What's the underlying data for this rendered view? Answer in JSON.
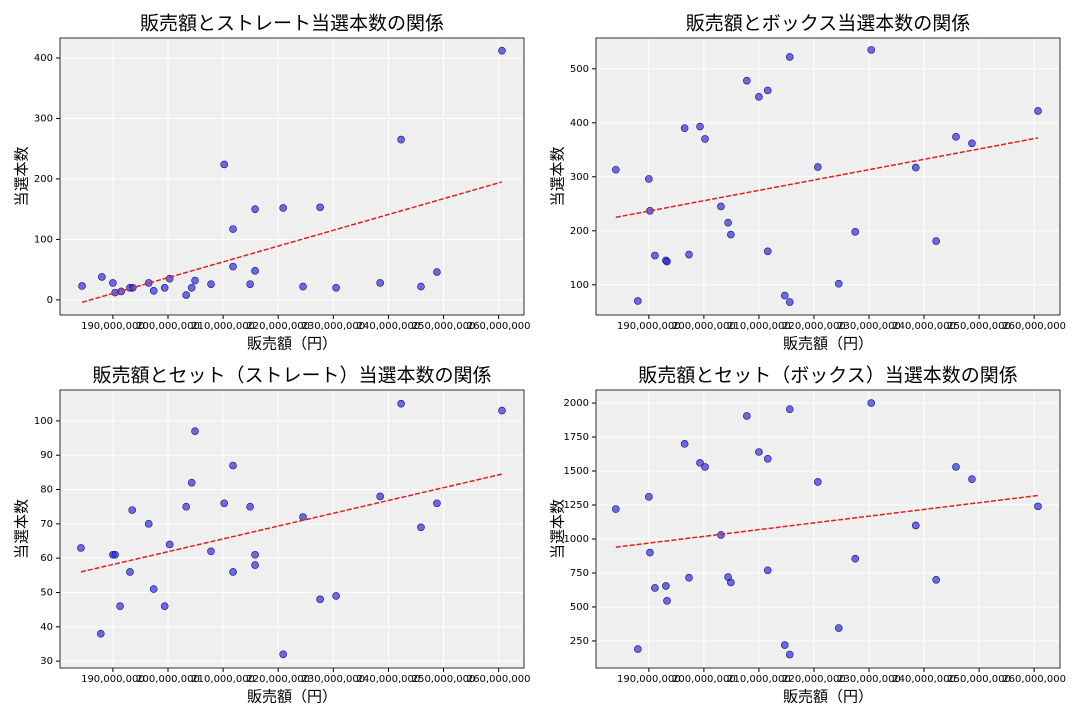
{
  "chart_data": [
    {
      "type": "scatter",
      "title": "販売額とストレート当選本数の関係",
      "xlabel": "販売額（円）",
      "ylabel": "当選本数",
      "grid": true,
      "xlim": [
        180400000,
        264600000
      ],
      "ylim": [
        -25,
        433
      ],
      "xticks": [
        {
          "value": 190000000,
          "label": "190,000,000"
        },
        {
          "value": 200000000,
          "label": "200,000,000"
        },
        {
          "value": 210000000,
          "label": "210,000,000"
        },
        {
          "value": 220000000,
          "label": "220,000,000"
        },
        {
          "value": 230000000,
          "label": "230,000,000"
        },
        {
          "value": 240000000,
          "label": "240,000,000"
        },
        {
          "value": 250000000,
          "label": "250,000,000"
        },
        {
          "value": 260000000,
          "label": "260,000,000"
        }
      ],
      "yticks": [
        0,
        100,
        200,
        300,
        400
      ],
      "series": [
        {
          "color": "#2020e0",
          "x": [
            184400000,
            188000000,
            190000000,
            190400000,
            191500000,
            193100000,
            193600000,
            196500000,
            197400000,
            199400000,
            200300000,
            203300000,
            204300000,
            204900000,
            207800000,
            210200000,
            211800000,
            211800000,
            214900000,
            215800000,
            215800000,
            220900000,
            224500000,
            227600000,
            230500000,
            238500000,
            242300000,
            245900000,
            248800000,
            260600000
          ],
          "values": [
            23,
            38,
            28,
            12,
            14,
            20,
            20,
            28,
            15,
            20,
            35,
            8,
            20,
            32,
            26,
            224,
            117,
            55,
            26,
            150,
            48,
            152,
            22,
            153,
            20,
            28,
            265,
            22,
            46,
            412
          ]
        }
      ],
      "trend": {
        "color": "#e02020",
        "x": [
          184400000,
          260600000
        ],
        "values": [
          -4,
          195
        ]
      }
    },
    {
      "type": "scatter",
      "title": "販売額とボックス当選本数の関係",
      "xlabel": "販売額（円）",
      "ylabel": "当選本数",
      "grid": true,
      "xlim": [
        180400000,
        264700000
      ],
      "ylim": [
        44,
        557
      ],
      "xticks": [
        {
          "value": 190000000,
          "label": "190,000,000"
        },
        {
          "value": 200000000,
          "label": "200,000,000"
        },
        {
          "value": 210000000,
          "label": "210,000,000"
        },
        {
          "value": 220000000,
          "label": "220,000,000"
        },
        {
          "value": 230000000,
          "label": "230,000,000"
        },
        {
          "value": 240000000,
          "label": "240,000,000"
        },
        {
          "value": 250000000,
          "label": "250,000,000"
        },
        {
          "value": 260000000,
          "label": "260,000,000"
        }
      ],
      "yticks": [
        100,
        200,
        300,
        400,
        500
      ],
      "series": [
        {
          "color": "#2020e0",
          "x": [
            184000000,
            188000000,
            190000000,
            190200000,
            191100000,
            193100000,
            193300000,
            196500000,
            197300000,
            199300000,
            200200000,
            203100000,
            204400000,
            204900000,
            207800000,
            210000000,
            211600000,
            211600000,
            214700000,
            215600000,
            215600000,
            220700000,
            224500000,
            227500000,
            230400000,
            238500000,
            242200000,
            245800000,
            248700000,
            260700000
          ],
          "values": [
            313,
            70,
            296,
            237,
            154,
            145,
            143,
            390,
            156,
            393,
            370,
            245,
            215,
            193,
            478,
            448,
            460,
            162,
            80,
            522,
            68,
            318,
            102,
            198,
            535,
            317,
            181,
            374,
            362,
            422
          ]
        }
      ],
      "trend": {
        "color": "#e02020",
        "x": [
          184000000,
          260700000
        ],
        "values": [
          225,
          372
        ]
      }
    },
    {
      "type": "scatter",
      "title": "販売額とセット（ストレート）当選本数の関係",
      "xlabel": "販売額（円）",
      "ylabel": "当選本数",
      "grid": true,
      "xlim": [
        180400000,
        264600000
      ],
      "ylim": [
        28,
        109
      ],
      "xticks": [
        {
          "value": 190000000,
          "label": "190,000,000"
        },
        {
          "value": 200000000,
          "label": "200,000,000"
        },
        {
          "value": 210000000,
          "label": "210,000,000"
        },
        {
          "value": 220000000,
          "label": "220,000,000"
        },
        {
          "value": 230000000,
          "label": "230,000,000"
        },
        {
          "value": 240000000,
          "label": "240,000,000"
        },
        {
          "value": 250000000,
          "label": "250,000,000"
        },
        {
          "value": 260000000,
          "label": "260,000,000"
        }
      ],
      "yticks": [
        30,
        40,
        50,
        60,
        70,
        80,
        90,
        100
      ],
      "series": [
        {
          "color": "#2020e0",
          "x": [
            184200000,
            187800000,
            190000000,
            190400000,
            191300000,
            193100000,
            193500000,
            196500000,
            197400000,
            199400000,
            200300000,
            203300000,
            204300000,
            204900000,
            207800000,
            210200000,
            211800000,
            211800000,
            214900000,
            215800000,
            215800000,
            220900000,
            224500000,
            227600000,
            230500000,
            238500000,
            242300000,
            245900000,
            248800000,
            260600000
          ],
          "values": [
            63,
            38,
            61,
            61,
            46,
            56,
            74,
            70,
            51,
            46,
            64,
            75,
            82,
            97,
            62,
            76,
            87,
            56,
            75,
            61,
            58,
            32,
            72,
            48,
            49,
            78,
            105,
            69,
            76,
            103
          ]
        }
      ],
      "trend": {
        "color": "#e02020",
        "x": [
          184200000,
          260600000
        ],
        "values": [
          56,
          84.5
        ]
      }
    },
    {
      "type": "scatter",
      "title": "販売額とセット（ボックス）当選本数の関係",
      "xlabel": "販売額（円）",
      "ylabel": "当選本数",
      "grid": true,
      "xlim": [
        180400000,
        264700000
      ],
      "ylim": [
        51,
        2096
      ],
      "xticks": [
        {
          "value": 190000000,
          "label": "190,000,000"
        },
        {
          "value": 200000000,
          "label": "200,000,000"
        },
        {
          "value": 210000000,
          "label": "210,000,000"
        },
        {
          "value": 220000000,
          "label": "220,000,000"
        },
        {
          "value": 230000000,
          "label": "230,000,000"
        },
        {
          "value": 240000000,
          "label": "240,000,000"
        },
        {
          "value": 250000000,
          "label": "250,000,000"
        },
        {
          "value": 260000000,
          "label": "260,000,000"
        }
      ],
      "yticks": [
        250,
        500,
        750,
        1000,
        1250,
        1500,
        1750,
        2000
      ],
      "series": [
        {
          "color": "#2020e0",
          "x": [
            184000000,
            188000000,
            190000000,
            190200000,
            191100000,
            193100000,
            193300000,
            196500000,
            197300000,
            199300000,
            200200000,
            203100000,
            204400000,
            204900000,
            207800000,
            210000000,
            211600000,
            211600000,
            214700000,
            215600000,
            215600000,
            220700000,
            224500000,
            227500000,
            230400000,
            238500000,
            242200000,
            245800000,
            248700000,
            260700000
          ],
          "values": [
            1220,
            190,
            1310,
            900,
            640,
            655,
            545,
            1700,
            715,
            1560,
            1530,
            1030,
            720,
            680,
            1905,
            1640,
            1590,
            770,
            220,
            1955,
            150,
            1420,
            345,
            855,
            2000,
            1100,
            700,
            1530,
            1440,
            1240
          ]
        }
      ],
      "trend": {
        "color": "#e02020",
        "x": [
          184000000,
          260700000
        ],
        "values": [
          940,
          1320
        ]
      }
    }
  ]
}
